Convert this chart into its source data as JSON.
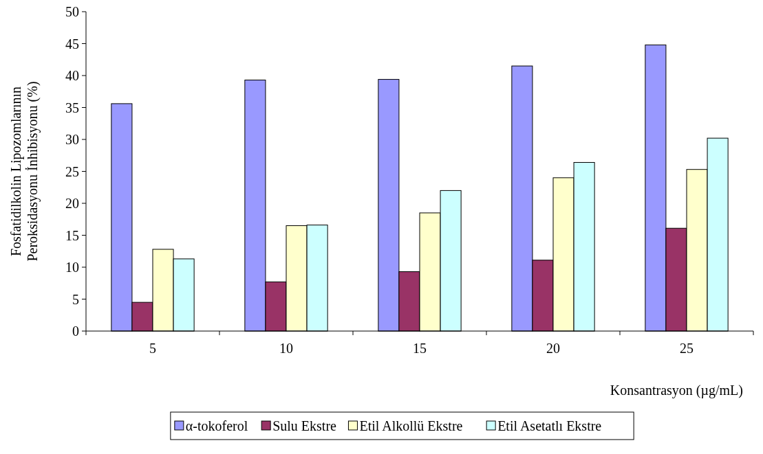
{
  "chart_data": {
    "type": "bar",
    "xlabel": "Konsantrasyon (µg/mL)",
    "ylabel": "Fosfatidilkolin Lipozomlarının\nPeroksidasyonu İnhibisyonu (%)",
    "categories": [
      "5",
      "10",
      "15",
      "20",
      "25"
    ],
    "series": [
      {
        "name": "α-tokoferol",
        "color": "#9999ff",
        "values": [
          35.6,
          39.3,
          39.4,
          41.5,
          44.8
        ]
      },
      {
        "name": "Sulu Ekstre",
        "color": "#993366",
        "values": [
          4.5,
          7.7,
          9.3,
          11.1,
          16.1
        ]
      },
      {
        "name": "Etil Alkollü Ekstre",
        "color": "#ffffcc",
        "values": [
          12.8,
          16.5,
          18.5,
          24.0,
          25.3
        ]
      },
      {
        "name": "Etil Asetatlı Ekstre",
        "color": "#ccffff",
        "values": [
          11.3,
          16.6,
          22.0,
          26.4,
          30.2
        ]
      }
    ],
    "ylim": [
      0,
      50
    ],
    "yticks": [
      0,
      5,
      10,
      15,
      20,
      25,
      30,
      35,
      40,
      45,
      50
    ],
    "grid": false,
    "legend": "bottom"
  }
}
